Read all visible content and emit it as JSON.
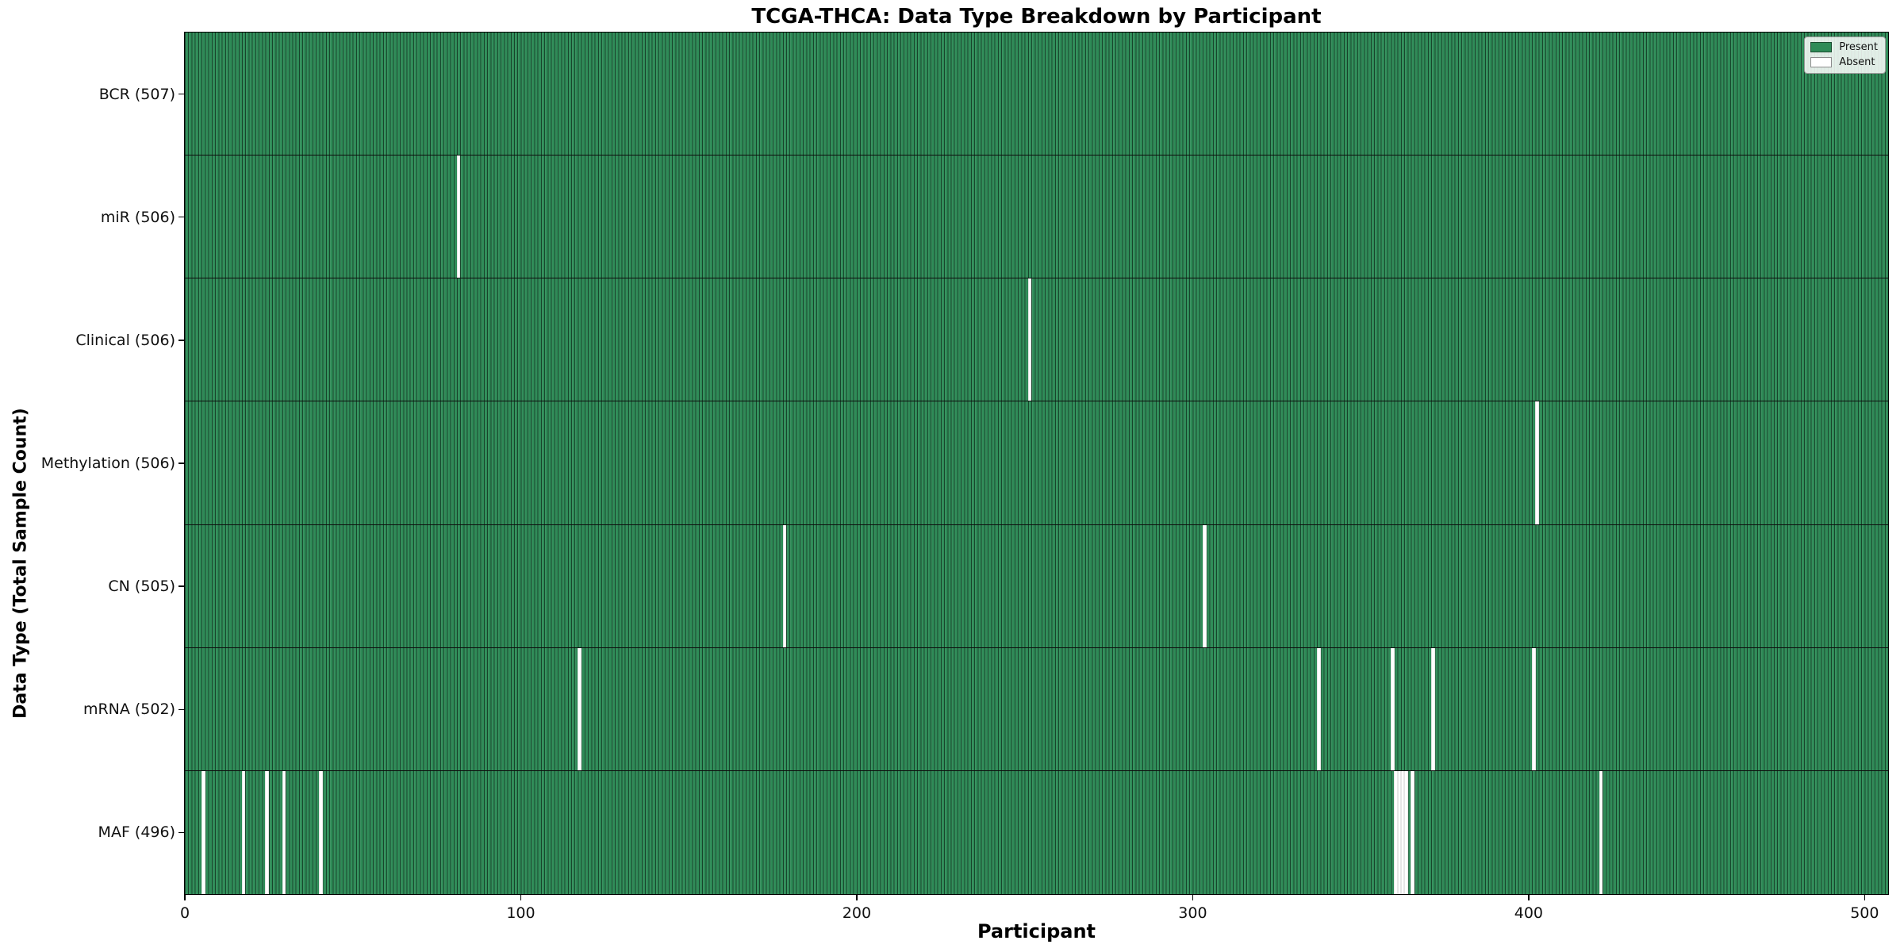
{
  "title": "TCGA-THCA: Data Type Breakdown by Participant",
  "legend": {
    "present_label": "Present",
    "absent_label": "Absent"
  },
  "colors": {
    "present": "#2e8b57",
    "absent": "#ffffff",
    "bar_edge": "rgba(0,0,0,0.5)",
    "axis": "#000000"
  },
  "chart_data": {
    "type": "heatmap",
    "title": "TCGA-THCA: Data Type Breakdown by Participant",
    "xlabel": "Participant",
    "ylabel": "Data Type (Total Sample Count)",
    "x_ticks": [
      0,
      100,
      200,
      300,
      400,
      500
    ],
    "xlim": [
      0,
      507
    ],
    "n_participants": 507,
    "grid": false,
    "legend_entries": [
      "Present",
      "Absent"
    ],
    "legend_position": "upper right",
    "rows": [
      {
        "label": "BCR (507)",
        "data_type": "BCR",
        "total": 507,
        "absent_participants": []
      },
      {
        "label": "miR (506)",
        "data_type": "miR",
        "total": 506,
        "absent_participants": [
          81
        ]
      },
      {
        "label": "Clinical (506)",
        "data_type": "Clinical",
        "total": 506,
        "absent_participants": [
          251
        ]
      },
      {
        "label": "Methylation (506)",
        "data_type": "Methylation",
        "total": 506,
        "absent_participants": [
          402
        ]
      },
      {
        "label": "CN (505)",
        "data_type": "CN",
        "total": 505,
        "absent_participants": [
          178,
          303
        ]
      },
      {
        "label": "mRNA (502)",
        "data_type": "mRNA",
        "total": 502,
        "absent_participants": [
          117,
          337,
          359,
          371,
          401
        ]
      },
      {
        "label": "MAF (496)",
        "data_type": "MAF",
        "total": 496,
        "absent_participants": [
          5,
          17,
          24,
          29,
          40,
          360,
          361,
          362,
          363,
          365,
          421
        ]
      }
    ]
  }
}
